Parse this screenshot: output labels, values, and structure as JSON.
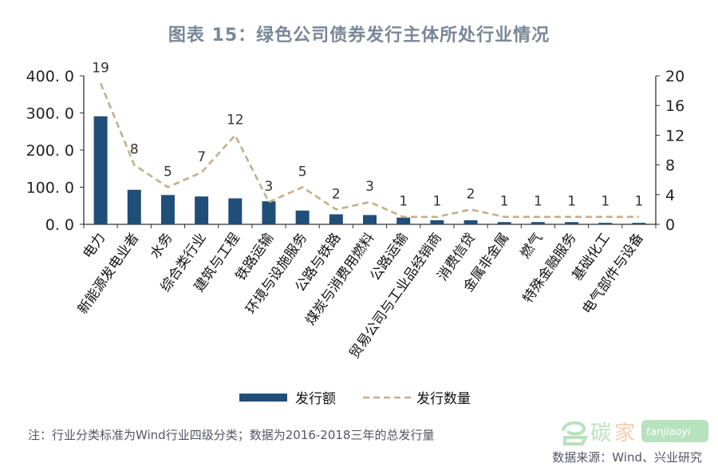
{
  "chart_data": {
    "type": "bar",
    "title": "图表 15：绿色公司债券发行主体所处行业情况",
    "categories": [
      "电力",
      "新能源发电业者",
      "水务",
      "综合类行业",
      "建筑与工程",
      "铁路运输",
      "环境与设施服务",
      "公路与铁路",
      "煤炭与消费用燃料",
      "公路运输",
      "贸易公司与工业品经销商",
      "消费信贷",
      "金属非金属",
      "燃气",
      "特殊金融服务",
      "基础化工",
      "电气部件与设备"
    ],
    "series": [
      {
        "name": "发行额",
        "type": "bar",
        "axis": "left",
        "color": "#1f4e79",
        "values": [
          291,
          93,
          79,
          75,
          70,
          62,
          37,
          27,
          25,
          18,
          11,
          11,
          6,
          6,
          6,
          4,
          4
        ]
      },
      {
        "name": "发行数量",
        "type": "line",
        "axis": "right",
        "color": "#c2b08a",
        "dashed": true,
        "values": [
          19,
          8,
          5,
          7,
          12,
          3,
          5,
          2,
          3,
          1,
          1,
          2,
          1,
          1,
          1,
          1,
          1
        ],
        "data_labels": [
          "19",
          "8",
          "5",
          "7",
          "12",
          "3",
          "5",
          "2",
          "3",
          "1",
          "1",
          "2",
          "1",
          "1",
          "1",
          "1",
          "1"
        ]
      }
    ],
    "left_axis": {
      "ylim": [
        0,
        400
      ],
      "ticks": [
        0,
        100,
        200,
        300,
        400
      ],
      "tick_labels": [
        "0. 0",
        "100. 0",
        "200. 0",
        "300. 0",
        "400. 0"
      ]
    },
    "right_axis": {
      "ylim": [
        0,
        20
      ],
      "ticks": [
        0,
        4,
        8,
        12,
        16,
        20
      ],
      "tick_labels": [
        "0",
        "4",
        "8",
        "12",
        "16",
        "20"
      ]
    },
    "legend": {
      "placement": "bottom",
      "entries": [
        "发行额",
        "发行数量"
      ]
    },
    "grid": false
  },
  "note": "注：行业分类标准为Wind行业四级分类；数据为2016-2018三年的总发行量",
  "source": "数据来源：Wind、兴业研究",
  "watermark": "碳家 tanjiaoyi"
}
